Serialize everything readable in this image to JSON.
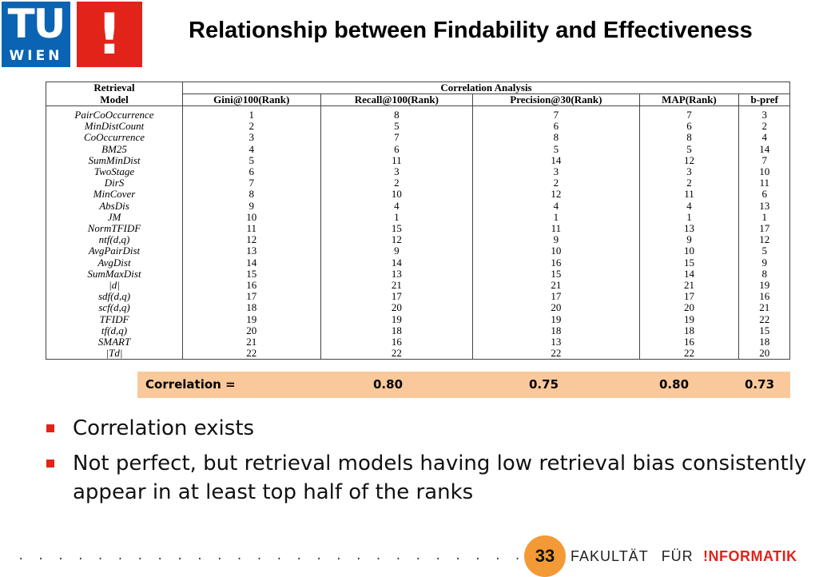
{
  "logo": {
    "letters": "TU",
    "city": "WIEN",
    "mark": "!"
  },
  "title": "Relationship between Findability and Effectiveness",
  "table": {
    "group_header_left_line1": "Retrieval",
    "group_header_left_line2": "Model",
    "group_header_right": "Correlation Analysis",
    "columns": [
      "Gini@100(Rank)",
      "Recall@100(Rank)",
      "Precision@30(Rank)",
      "MAP(Rank)",
      "b-pref"
    ],
    "rows": [
      {
        "model": "PairCoOccurrence",
        "values": [
          "1",
          "8",
          "7",
          "7",
          "3"
        ]
      },
      {
        "model": "MinDistCount",
        "values": [
          "2",
          "5",
          "6",
          "6",
          "2"
        ]
      },
      {
        "model": "CoOccurrence",
        "values": [
          "3",
          "7",
          "8",
          "8",
          "4"
        ]
      },
      {
        "model": "BM25",
        "values": [
          "4",
          "6",
          "5",
          "5",
          "14"
        ]
      },
      {
        "model": "SumMinDist",
        "values": [
          "5",
          "11",
          "14",
          "12",
          "7"
        ]
      },
      {
        "model": "TwoStage",
        "values": [
          "6",
          "3",
          "3",
          "3",
          "10"
        ]
      },
      {
        "model": "DirS",
        "values": [
          "7",
          "2",
          "2",
          "2",
          "11"
        ]
      },
      {
        "model": "MinCover",
        "values": [
          "8",
          "10",
          "12",
          "11",
          "6"
        ]
      },
      {
        "model": "AbsDis",
        "values": [
          "9",
          "4",
          "4",
          "4",
          "13"
        ]
      },
      {
        "model": "JM",
        "values": [
          "10",
          "1",
          "1",
          "1",
          "1"
        ]
      },
      {
        "model": "NormTFIDF",
        "values": [
          "11",
          "15",
          "11",
          "13",
          "17"
        ]
      },
      {
        "model": "ntf(d,q)",
        "values": [
          "12",
          "12",
          "9",
          "9",
          "12"
        ]
      },
      {
        "model": "AvgPairDist",
        "values": [
          "13",
          "9",
          "10",
          "10",
          "5"
        ]
      },
      {
        "model": "AvgDist",
        "values": [
          "14",
          "14",
          "16",
          "15",
          "9"
        ]
      },
      {
        "model": "SumMaxDist",
        "values": [
          "15",
          "13",
          "15",
          "14",
          "8"
        ]
      },
      {
        "model": "|d|",
        "values": [
          "16",
          "21",
          "21",
          "21",
          "19"
        ]
      },
      {
        "model": "sdf(d,q)",
        "values": [
          "17",
          "17",
          "17",
          "17",
          "16"
        ]
      },
      {
        "model": "scf(d,q)",
        "values": [
          "18",
          "20",
          "20",
          "20",
          "21"
        ]
      },
      {
        "model": "TFIDF",
        "values": [
          "19",
          "19",
          "19",
          "19",
          "22"
        ]
      },
      {
        "model": "tf(d,q)",
        "values": [
          "20",
          "18",
          "18",
          "18",
          "15"
        ]
      },
      {
        "model": "SMART",
        "values": [
          "21",
          "16",
          "13",
          "16",
          "18"
        ]
      },
      {
        "model": "|Td|",
        "values": [
          "22",
          "22",
          "22",
          "22",
          "20"
        ]
      }
    ]
  },
  "correlation": {
    "label": "Correlation =",
    "values": [
      "0.80",
      "0.75",
      "0.80",
      "0.73"
    ]
  },
  "bullets": [
    "Correlation exists",
    "Not perfect, but retrieval models having low retrieval bias consistently appear in at least top half of the ranks"
  ],
  "footer": {
    "dots": ". . . . . . . . . . . . . . . . . . . . . . . . . . . . . . . . . . . . . . . . . . . . . . . . . . . . . . . . . . . . . . . . . . . . .",
    "page_number": "33",
    "faculty_word1": "FAKULTÄT",
    "faculty_word2": "FÜR",
    "faculty_brand": "!NFORMATIK"
  },
  "colors": {
    "tu_blue": "#0a64b3",
    "accent_red": "#e2231a",
    "correlation_bar": "#f9c99b",
    "page_circle": "#f39a36"
  }
}
